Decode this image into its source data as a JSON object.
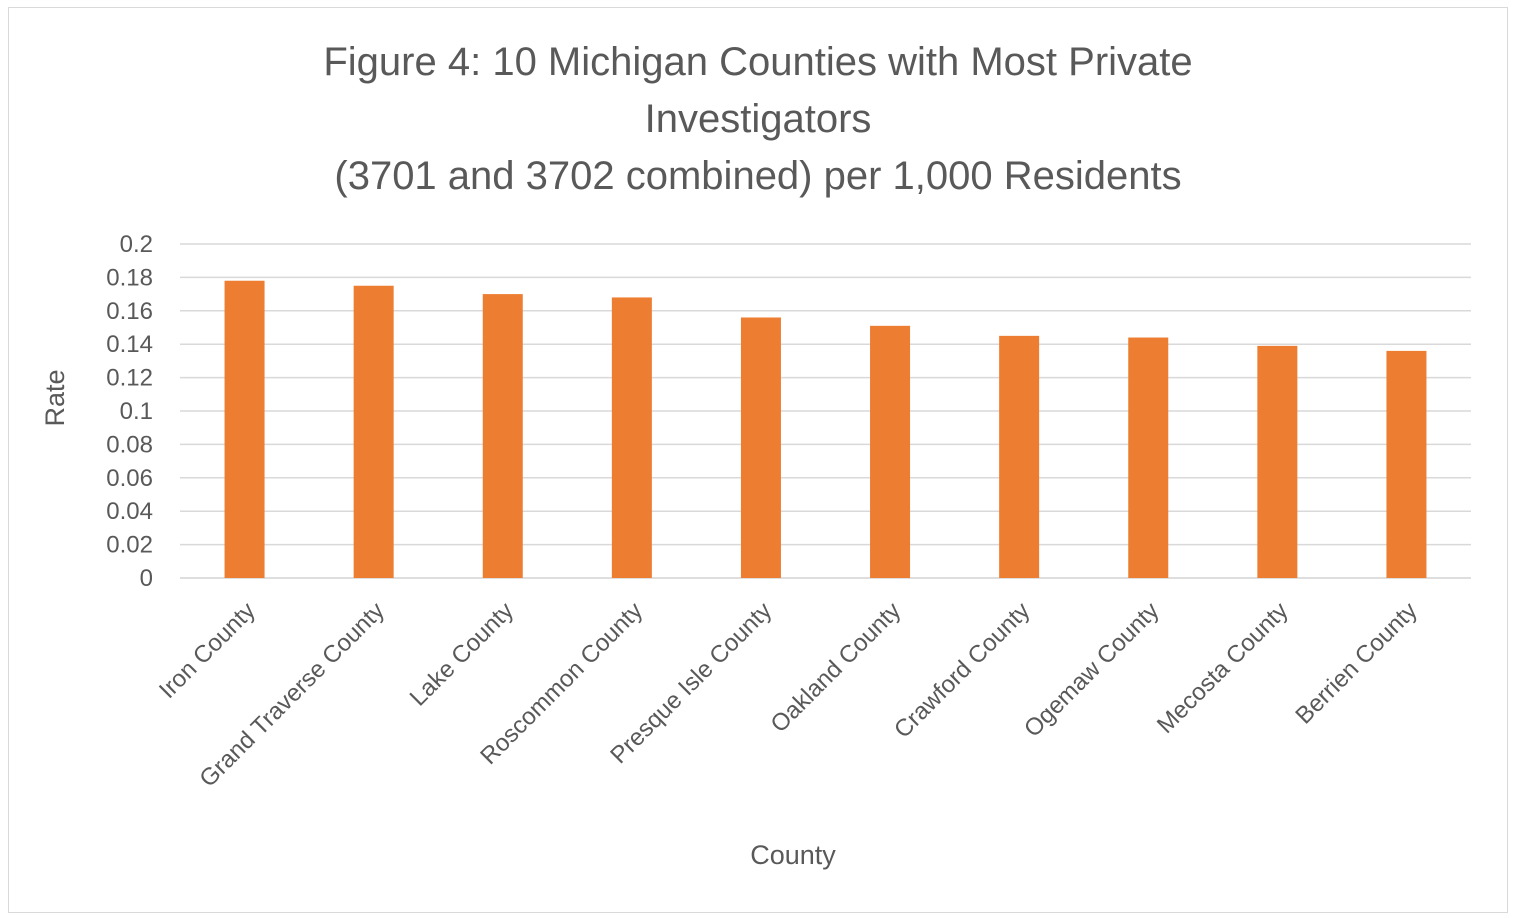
{
  "chart_data": {
    "type": "bar",
    "title_lines": [
      "Figure 4: 10 Michigan Counties with Most Private",
      "Investigators",
      "(3701 and 3702 combined) per 1,000 Residents"
    ],
    "xlabel": "County",
    "ylabel": "Rate",
    "categories": [
      "Iron County",
      "Grand Traverse County",
      "Lake County",
      "Roscommon County",
      "Presque Isle County",
      "Oakland County",
      "Crawford County",
      "Ogemaw County",
      "Mecosta County",
      "Berrien County"
    ],
    "values": [
      0.178,
      0.175,
      0.17,
      0.168,
      0.156,
      0.151,
      0.145,
      0.144,
      0.139,
      0.136
    ],
    "ylim": [
      0,
      0.2
    ],
    "yticks": [
      "0",
      "0.02",
      "0.04",
      "0.06",
      "0.08",
      "0.1",
      "0.12",
      "0.14",
      "0.16",
      "0.18",
      "0.2"
    ],
    "bar_color": "#ED7D31",
    "grid_color": "#D9D9D9",
    "grid": true,
    "legend": "none"
  }
}
